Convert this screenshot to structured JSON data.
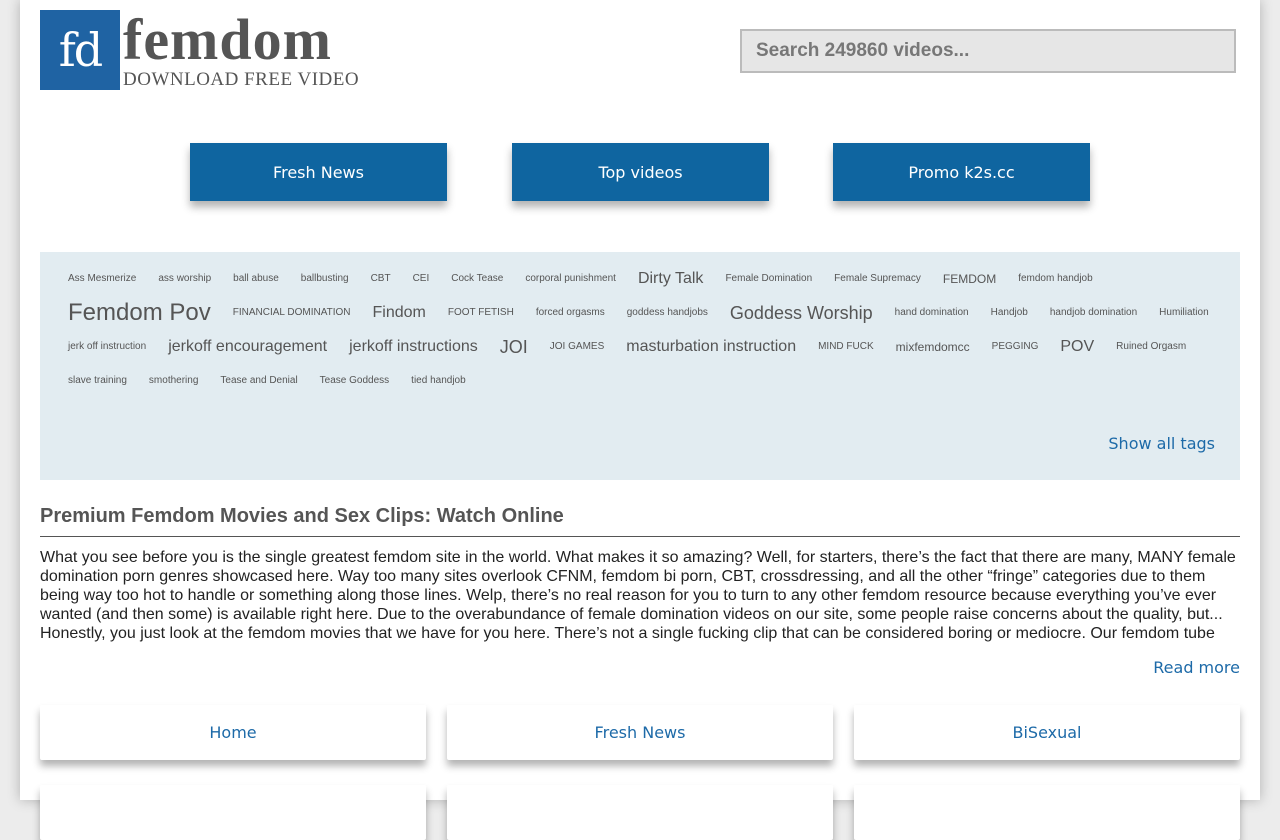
{
  "logo": {
    "mark": "fd",
    "name": "femdom",
    "tagline": "DOWNLOAD FREE VIDEO"
  },
  "search": {
    "placeholder": "Search 249860 videos...",
    "value": ""
  },
  "nav": [
    {
      "label": "Fresh News"
    },
    {
      "label": "Top videos"
    },
    {
      "label": "Promo k2s.cc"
    }
  ],
  "tags": [
    {
      "label": "Ass Mesmerize",
      "weight": 1
    },
    {
      "label": "ass worship",
      "weight": 1
    },
    {
      "label": "ball abuse",
      "weight": 1
    },
    {
      "label": "ballbusting",
      "weight": 1
    },
    {
      "label": "CBT",
      "weight": 1
    },
    {
      "label": "CEI",
      "weight": 1
    },
    {
      "label": "Cock Tease",
      "weight": 1
    },
    {
      "label": "corporal punishment",
      "weight": 1
    },
    {
      "label": "Dirty Talk",
      "weight": 3
    },
    {
      "label": "Female Domination",
      "weight": 1
    },
    {
      "label": "Female Supremacy",
      "weight": 1
    },
    {
      "label": "FEMDOM",
      "weight": 2
    },
    {
      "label": "femdom handjob",
      "weight": 1
    },
    {
      "label": "Femdom Pov",
      "weight": 5
    },
    {
      "label": "FINANCIAL DOMINATION",
      "weight": 1
    },
    {
      "label": "Findom",
      "weight": 3
    },
    {
      "label": "FOOT FETISH",
      "weight": 1
    },
    {
      "label": "forced orgasms",
      "weight": 1
    },
    {
      "label": "goddess handjobs",
      "weight": 1
    },
    {
      "label": "Goddess Worship",
      "weight": 4
    },
    {
      "label": "hand domination",
      "weight": 1
    },
    {
      "label": "Handjob",
      "weight": 1
    },
    {
      "label": "handjob domination",
      "weight": 1
    },
    {
      "label": "Humiliation",
      "weight": 1
    },
    {
      "label": "jerk off instruction",
      "weight": 1
    },
    {
      "label": "jerkoff encouragement",
      "weight": 3
    },
    {
      "label": "jerkoff instructions",
      "weight": 3
    },
    {
      "label": "JOI",
      "weight": 4
    },
    {
      "label": "JOI GAMES",
      "weight": 1
    },
    {
      "label": "masturbation instruction",
      "weight": 3
    },
    {
      "label": "MIND FUCK",
      "weight": 1
    },
    {
      "label": "mixfemdomcc",
      "weight": 2
    },
    {
      "label": "PEGGING",
      "weight": 1
    },
    {
      "label": "POV",
      "weight": 3
    },
    {
      "label": "Ruined Orgasm",
      "weight": 1
    },
    {
      "label": "slave training",
      "weight": 1
    },
    {
      "label": "smothering",
      "weight": 1
    },
    {
      "label": "Tease and Denial",
      "weight": 1
    },
    {
      "label": "Tease Goddess",
      "weight": 1
    },
    {
      "label": "tied handjob",
      "weight": 1
    }
  ],
  "show_all_tags": "Show all tags",
  "article": {
    "title": "Premium Femdom Movies and Sex Clips: Watch Online",
    "text": "What you see before you is the single greatest femdom site in the world. What makes it so amazing? Well, for starters, there’s the fact that there are many, MANY female domination porn genres showcased here. Way too many sites overlook CFNM, femdom bi porn, CBT, crossdressing, and all the other “fringe” categories due to them being way too hot to handle or something along those lines. Welp, there’s no real reason for you to turn to any other femdom resource because everything you’ve ever wanted (and then some) is available right here. Due to the overabundance of female domination videos on our site, some people raise concerns about the quality, but... Honestly, you just look at the femdom movies that we have for you here. There’s not a single fucking clip that can be considered boring or mediocre. Our femdom tube",
    "read_more": "Read more"
  },
  "categories": [
    {
      "label": "Home"
    },
    {
      "label": "Fresh News"
    },
    {
      "label": "BiSexual"
    },
    {
      "label": ""
    },
    {
      "label": ""
    },
    {
      "label": ""
    }
  ],
  "colors": {
    "brand": "#1f63a3",
    "button": "#0f65a0",
    "link": "#1d6aa8",
    "tag_panel": "#e2ecf1"
  }
}
